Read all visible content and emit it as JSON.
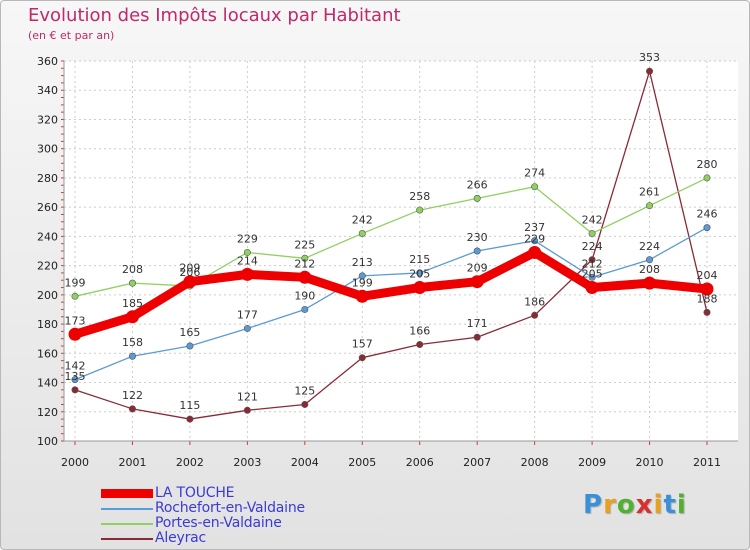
{
  "chart_data": {
    "type": "line",
    "title": "Evolution des Impôts locaux par Habitant",
    "subtitle": "(en € et par an)",
    "xlabel": "",
    "ylabel": "",
    "categories": [
      "2000",
      "2001",
      "2002",
      "2003",
      "2004",
      "2005",
      "2006",
      "2007",
      "2008",
      "2009",
      "2010",
      "2011"
    ],
    "ylim": [
      100,
      360
    ],
    "yticks": [
      100,
      120,
      140,
      160,
      180,
      200,
      220,
      240,
      260,
      280,
      300,
      320,
      340,
      360
    ],
    "grid": true,
    "legend_position": "bottom-left",
    "series": [
      {
        "name": "Aleyrac",
        "color": "#8b2a35",
        "values": [
          135,
          122,
          115,
          121,
          125,
          157,
          166,
          171,
          186,
          224,
          353,
          188
        ]
      },
      {
        "name": "Rochefort-en-Valdaine",
        "color": "#5a9ad6",
        "values": [
          142,
          158,
          165,
          177,
          190,
          213,
          215,
          230,
          237,
          212,
          224,
          246
        ]
      },
      {
        "name": "Portes-en-Valdaine",
        "color": "#8fd060",
        "values": [
          199,
          208,
          206,
          229,
          225,
          242,
          258,
          266,
          274,
          242,
          261,
          280
        ]
      },
      {
        "name": "LA TOUCHE",
        "color": "#ee0000",
        "values": [
          173,
          185,
          209,
          214,
          212,
          199,
          205,
          209,
          229,
          205,
          208,
          204
        ]
      }
    ],
    "legend_order": [
      "LA TOUCHE",
      "Rochefort-en-Valdaine",
      "Portes-en-Valdaine",
      "Aleyrac"
    ]
  },
  "logo": {
    "text": "Proxiti",
    "letters": [
      "P",
      "r",
      "o",
      "x",
      "i",
      "t",
      "i"
    ],
    "colors": [
      "#3a8fd9",
      "#e8a020",
      "#50b030",
      "#d83030",
      "#e8a020",
      "#3a8fd9",
      "#50b030"
    ]
  }
}
